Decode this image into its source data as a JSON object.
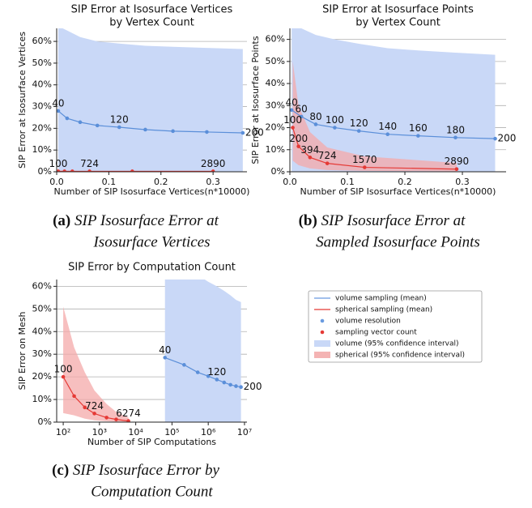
{
  "chart_data": [
    {
      "type": "line",
      "title": [
        "SIP Error at Isosurface Vertices",
        "by Vertex Count"
      ],
      "x_label": "Number of SIP Isosurface Vertices(n*10000)",
      "y_label": "SIP Error at Isosurface Vertices",
      "caption_label": "(a)",
      "caption": [
        "SIP Isosurface Error at",
        "Isosurface Vertices"
      ],
      "xscale": "linear",
      "xlim": [
        0,
        0.365
      ],
      "xticks": [
        {
          "value": 0,
          "label": "0.0"
        },
        0.1,
        0.2,
        0.3
      ],
      "ylim": [
        0,
        66
      ],
      "yticks": [
        {
          "value": 0,
          "label": "0%"
        },
        {
          "value": 10,
          "label": "10%"
        },
        {
          "value": 20,
          "label": "20%"
        },
        {
          "value": 30,
          "label": "30%"
        },
        {
          "value": 40,
          "label": "40%"
        },
        {
          "value": 50,
          "label": "50%"
        },
        {
          "value": 60,
          "label": "60%"
        }
      ],
      "grid": true,
      "series": [
        {
          "color": "#5b8fd9",
          "band_color": "#c9d8f7",
          "x": [
            0.003,
            0.02,
            0.045,
            0.078,
            0.12,
            0.17,
            0.223,
            0.288,
            0.357
          ],
          "values": [
            28,
            24.6,
            22.8,
            21.3,
            20.5,
            19.4,
            18.7,
            18.3,
            17.9
          ],
          "ci_upper": [
            67,
            65,
            62,
            60,
            59,
            58,
            57.5,
            57,
            56.5
          ],
          "ci_lower": [
            0,
            0,
            0,
            0,
            0,
            0,
            0,
            0,
            0
          ],
          "point_labels": [
            40,
            null,
            null,
            null,
            120,
            null,
            null,
            null,
            200
          ]
        },
        {
          "color": "#e53935",
          "band_color": "#f4a9a9",
          "x": [
            0.003,
            0.015,
            0.03,
            0.063,
            0.145,
            0.3
          ],
          "values": [
            0.2,
            0.2,
            0.2,
            0.2,
            0.2,
            0.2
          ],
          "ci_upper": [
            0.6,
            0.5,
            0.4,
            0.3,
            0.3,
            0.3
          ],
          "ci_lower": [
            0,
            0,
            0,
            0,
            0,
            0
          ],
          "point_labels": [
            100,
            null,
            null,
            724,
            null,
            2890
          ]
        }
      ]
    },
    {
      "type": "line",
      "title": [
        "SIP Error at Isosurface Points",
        "by Vertex Count"
      ],
      "x_label": "Number of SIP Isosurface Vertices(n*10000)",
      "y_label": "SIP Error at Isosurface Points",
      "caption_label": "(b)",
      "caption": [
        "SIP Isosurface Error at",
        "Sampled Isosurface Points"
      ],
      "xscale": "linear",
      "xlim": [
        0,
        0.376
      ],
      "xticks": [
        {
          "value": 0,
          "label": "0.0"
        },
        0.1,
        0.2,
        0.3
      ],
      "ylim": [
        0,
        65
      ],
      "yticks": [
        {
          "value": 0,
          "label": "0%"
        },
        {
          "value": 10,
          "label": "10%"
        },
        {
          "value": 20,
          "label": "20%"
        },
        {
          "value": 30,
          "label": "30%"
        },
        {
          "value": 40,
          "label": "40%"
        },
        {
          "value": 50,
          "label": "50%"
        },
        {
          "value": 60,
          "label": "60%"
        }
      ],
      "grid": true,
      "series": [
        {
          "color": "#5b8fd9",
          "band_color": "#c9d8f7",
          "x": [
            0.003,
            0.02,
            0.045,
            0.078,
            0.12,
            0.17,
            0.223,
            0.288,
            0.357
          ],
          "values": [
            28,
            25,
            21.5,
            20,
            18.5,
            17,
            16.3,
            15.5,
            15
          ],
          "ci_upper": [
            65,
            65,
            62,
            60,
            58,
            56,
            55,
            54,
            53
          ],
          "ci_lower": [
            0,
            0,
            0,
            0,
            0,
            0,
            0,
            0,
            0
          ],
          "point_labels": [
            40,
            60,
            80,
            100,
            120,
            140,
            160,
            180,
            200
          ]
        },
        {
          "color": "#e53935",
          "band_color": "#f4a9a9",
          "x": [
            0.005,
            0.015,
            0.035,
            0.065,
            0.13,
            0.29
          ],
          "values": [
            20,
            11.5,
            6.5,
            3.8,
            2,
            1.2
          ],
          "ci_upper": [
            50,
            30,
            18,
            11,
            7,
            4
          ],
          "ci_lower": [
            5,
            3,
            1.5,
            0.8,
            0.4,
            0.2
          ],
          "point_labels": [
            100,
            200,
            394,
            724,
            1570,
            2890
          ]
        }
      ]
    },
    {
      "type": "line",
      "title": [
        "SIP Error by Computation Count"
      ],
      "x_label": "Number of SIP Computations",
      "y_label": "SIP Error on Mesh",
      "caption_label": "(c)",
      "caption": [
        "SIP Isosurface Error by",
        "Computation Count"
      ],
      "xscale": "log",
      "xlim": [
        66,
        11700000
      ],
      "xticks": [
        {
          "value": 100,
          "label": "10²"
        },
        {
          "value": 1000,
          "label": "10³"
        },
        {
          "value": 10000,
          "label": "10⁴"
        },
        {
          "value": 100000,
          "label": "10⁵"
        },
        {
          "value": 1000000,
          "label": "10⁶"
        },
        {
          "value": 10000000,
          "label": "10⁷"
        }
      ],
      "ylim": [
        0,
        63
      ],
      "yticks": [
        {
          "value": 0,
          "label": "0%"
        },
        {
          "value": 10,
          "label": "10%"
        },
        {
          "value": 20,
          "label": "20%"
        },
        {
          "value": 30,
          "label": "30%"
        },
        {
          "value": 40,
          "label": "40%"
        },
        {
          "value": 50,
          "label": "50%"
        },
        {
          "value": 60,
          "label": "60%"
        }
      ],
      "grid": true,
      "series": [
        {
          "color": "#5b8fd9",
          "band_color": "#c9d8f7",
          "x": [
            64000,
            216000,
            512000,
            1000000,
            1728000,
            2744000,
            4096000,
            5832000,
            8000000
          ],
          "values": [
            28.5,
            25.3,
            22,
            20.3,
            18.8,
            17.5,
            16.5,
            15.9,
            15.5
          ],
          "ci_upper": [
            70,
            68,
            65,
            62,
            60,
            58,
            56,
            54,
            53
          ],
          "ci_lower": [
            0,
            0,
            0,
            0,
            0,
            0,
            0,
            0,
            0
          ],
          "point_labels": [
            40,
            null,
            null,
            null,
            120,
            null,
            null,
            null,
            200
          ]
        },
        {
          "color": "#e53935",
          "band_color": "#f4a9a9",
          "x": [
            100,
            200,
            394,
            724,
            1570,
            2890,
            6274
          ],
          "values": [
            20,
            11.5,
            6.5,
            3.8,
            2,
            1.2,
            0.5
          ],
          "ci_upper": [
            51,
            33,
            22,
            14,
            8,
            4.5,
            2
          ],
          "ci_lower": [
            4,
            3,
            1.5,
            0.8,
            0.4,
            0.2,
            0.1
          ],
          "point_labels": [
            100,
            null,
            null,
            724,
            null,
            null,
            6274
          ]
        }
      ]
    }
  ],
  "legend": {
    "entries": [
      {
        "label": "volume sampling (mean)",
        "marker": "line",
        "color": "#6a9be0"
      },
      {
        "label": "spherical sampling (mean)",
        "marker": "line",
        "color": "#e53935"
      },
      {
        "label": "volume resolution",
        "marker": "dot",
        "color": "#6a9be0"
      },
      {
        "label": "sampling vector count",
        "marker": "dot",
        "color": "#e53935"
      },
      {
        "label": "volume (95% confidence interval)",
        "marker": "patch",
        "color": "#c9d8f7"
      },
      {
        "label": "spherical (95% confidence interval)",
        "marker": "patch",
        "color": "#f4b3b3"
      }
    ]
  }
}
